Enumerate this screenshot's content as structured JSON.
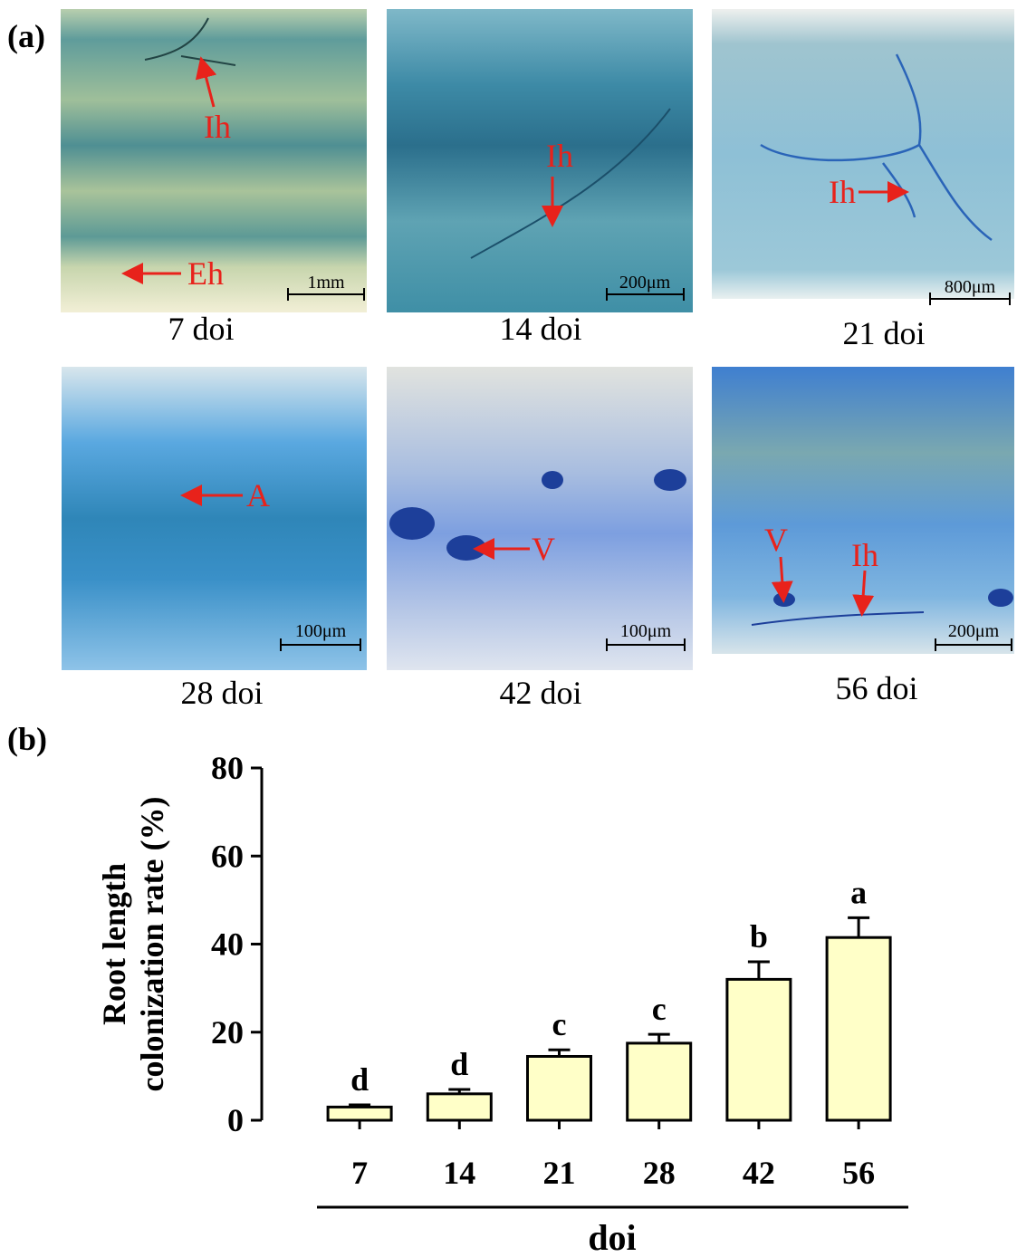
{
  "figure_labels": [
    "(a)",
    "(b)"
  ],
  "panels": [
    {
      "caption": "7 doi",
      "scale_bar": "1mm",
      "annotations": [
        "Ih",
        "Eh"
      ]
    },
    {
      "caption": "14 doi",
      "scale_bar": "200μm",
      "annotations": [
        "Ih"
      ]
    },
    {
      "caption": "21 doi",
      "scale_bar": "800μm",
      "annotations": [
        "Ih"
      ]
    },
    {
      "caption": "28 doi",
      "scale_bar": "100μm",
      "annotations": [
        "A"
      ]
    },
    {
      "caption": "42 doi",
      "scale_bar": "100μm",
      "annotations": [
        "V"
      ]
    },
    {
      "caption": "56 doi",
      "scale_bar": "200μm",
      "annotations": [
        "V",
        "Ih"
      ]
    }
  ],
  "chart_data": {
    "type": "bar",
    "categories": [
      "7",
      "14",
      "21",
      "28",
      "42",
      "56"
    ],
    "values": [
      3,
      6,
      14.5,
      17.5,
      32,
      41.5
    ],
    "errors": [
      0.5,
      1,
      1.5,
      2,
      4,
      4.5
    ],
    "letters": [
      "d",
      "d",
      "c",
      "c",
      "b",
      "a"
    ],
    "color": "#ffffc8",
    "ylim": [
      0,
      80
    ],
    "yticks": [
      0,
      20,
      40,
      60,
      80
    ],
    "ylabel": [
      "Root length",
      "colonization rate (%)"
    ],
    "xlabel": "doi"
  }
}
